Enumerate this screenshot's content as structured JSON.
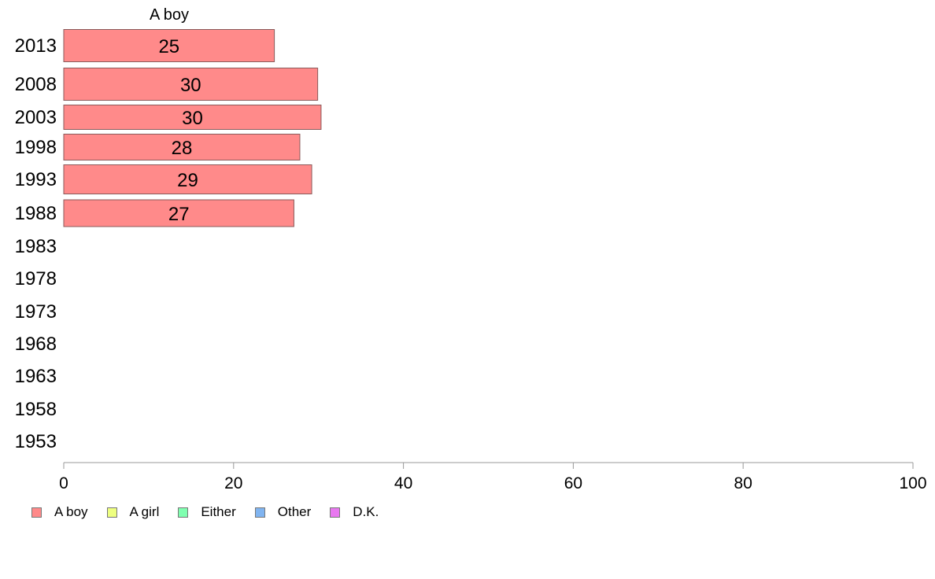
{
  "chart_data": {
    "type": "bar",
    "orientation": "horizontal",
    "stacked": true,
    "categories": [
      "2013",
      "2008",
      "2003",
      "1998",
      "1993",
      "1988",
      "1983",
      "1978",
      "1973",
      "1968",
      "1963",
      "1958",
      "1953"
    ],
    "series": [
      {
        "name": "A boy",
        "values": [
          24.8,
          29.9,
          30.3,
          27.8,
          29.2,
          27.1,
          null,
          null,
          null,
          null,
          null,
          null,
          null
        ],
        "labels": [
          "25",
          "30",
          "30",
          "28",
          "29",
          "27",
          "",
          "",
          "",
          "",
          "",
          "",
          ""
        ]
      }
    ],
    "column_header": "A boy",
    "xticks": [
      "0",
      "20",
      "40",
      "60",
      "80",
      "100"
    ],
    "xlim": [
      0,
      100
    ],
    "grid": false,
    "legend_position": "bottom-left",
    "legend": [
      {
        "label": "A boy",
        "color": "#ff8a8a"
      },
      {
        "label": "A girl",
        "color": "#eeff80"
      },
      {
        "label": "Either",
        "color": "#80ffb0"
      },
      {
        "label": "Other",
        "color": "#80b4f0"
      },
      {
        "label": "D.K.",
        "color": "#e878f0"
      }
    ]
  }
}
